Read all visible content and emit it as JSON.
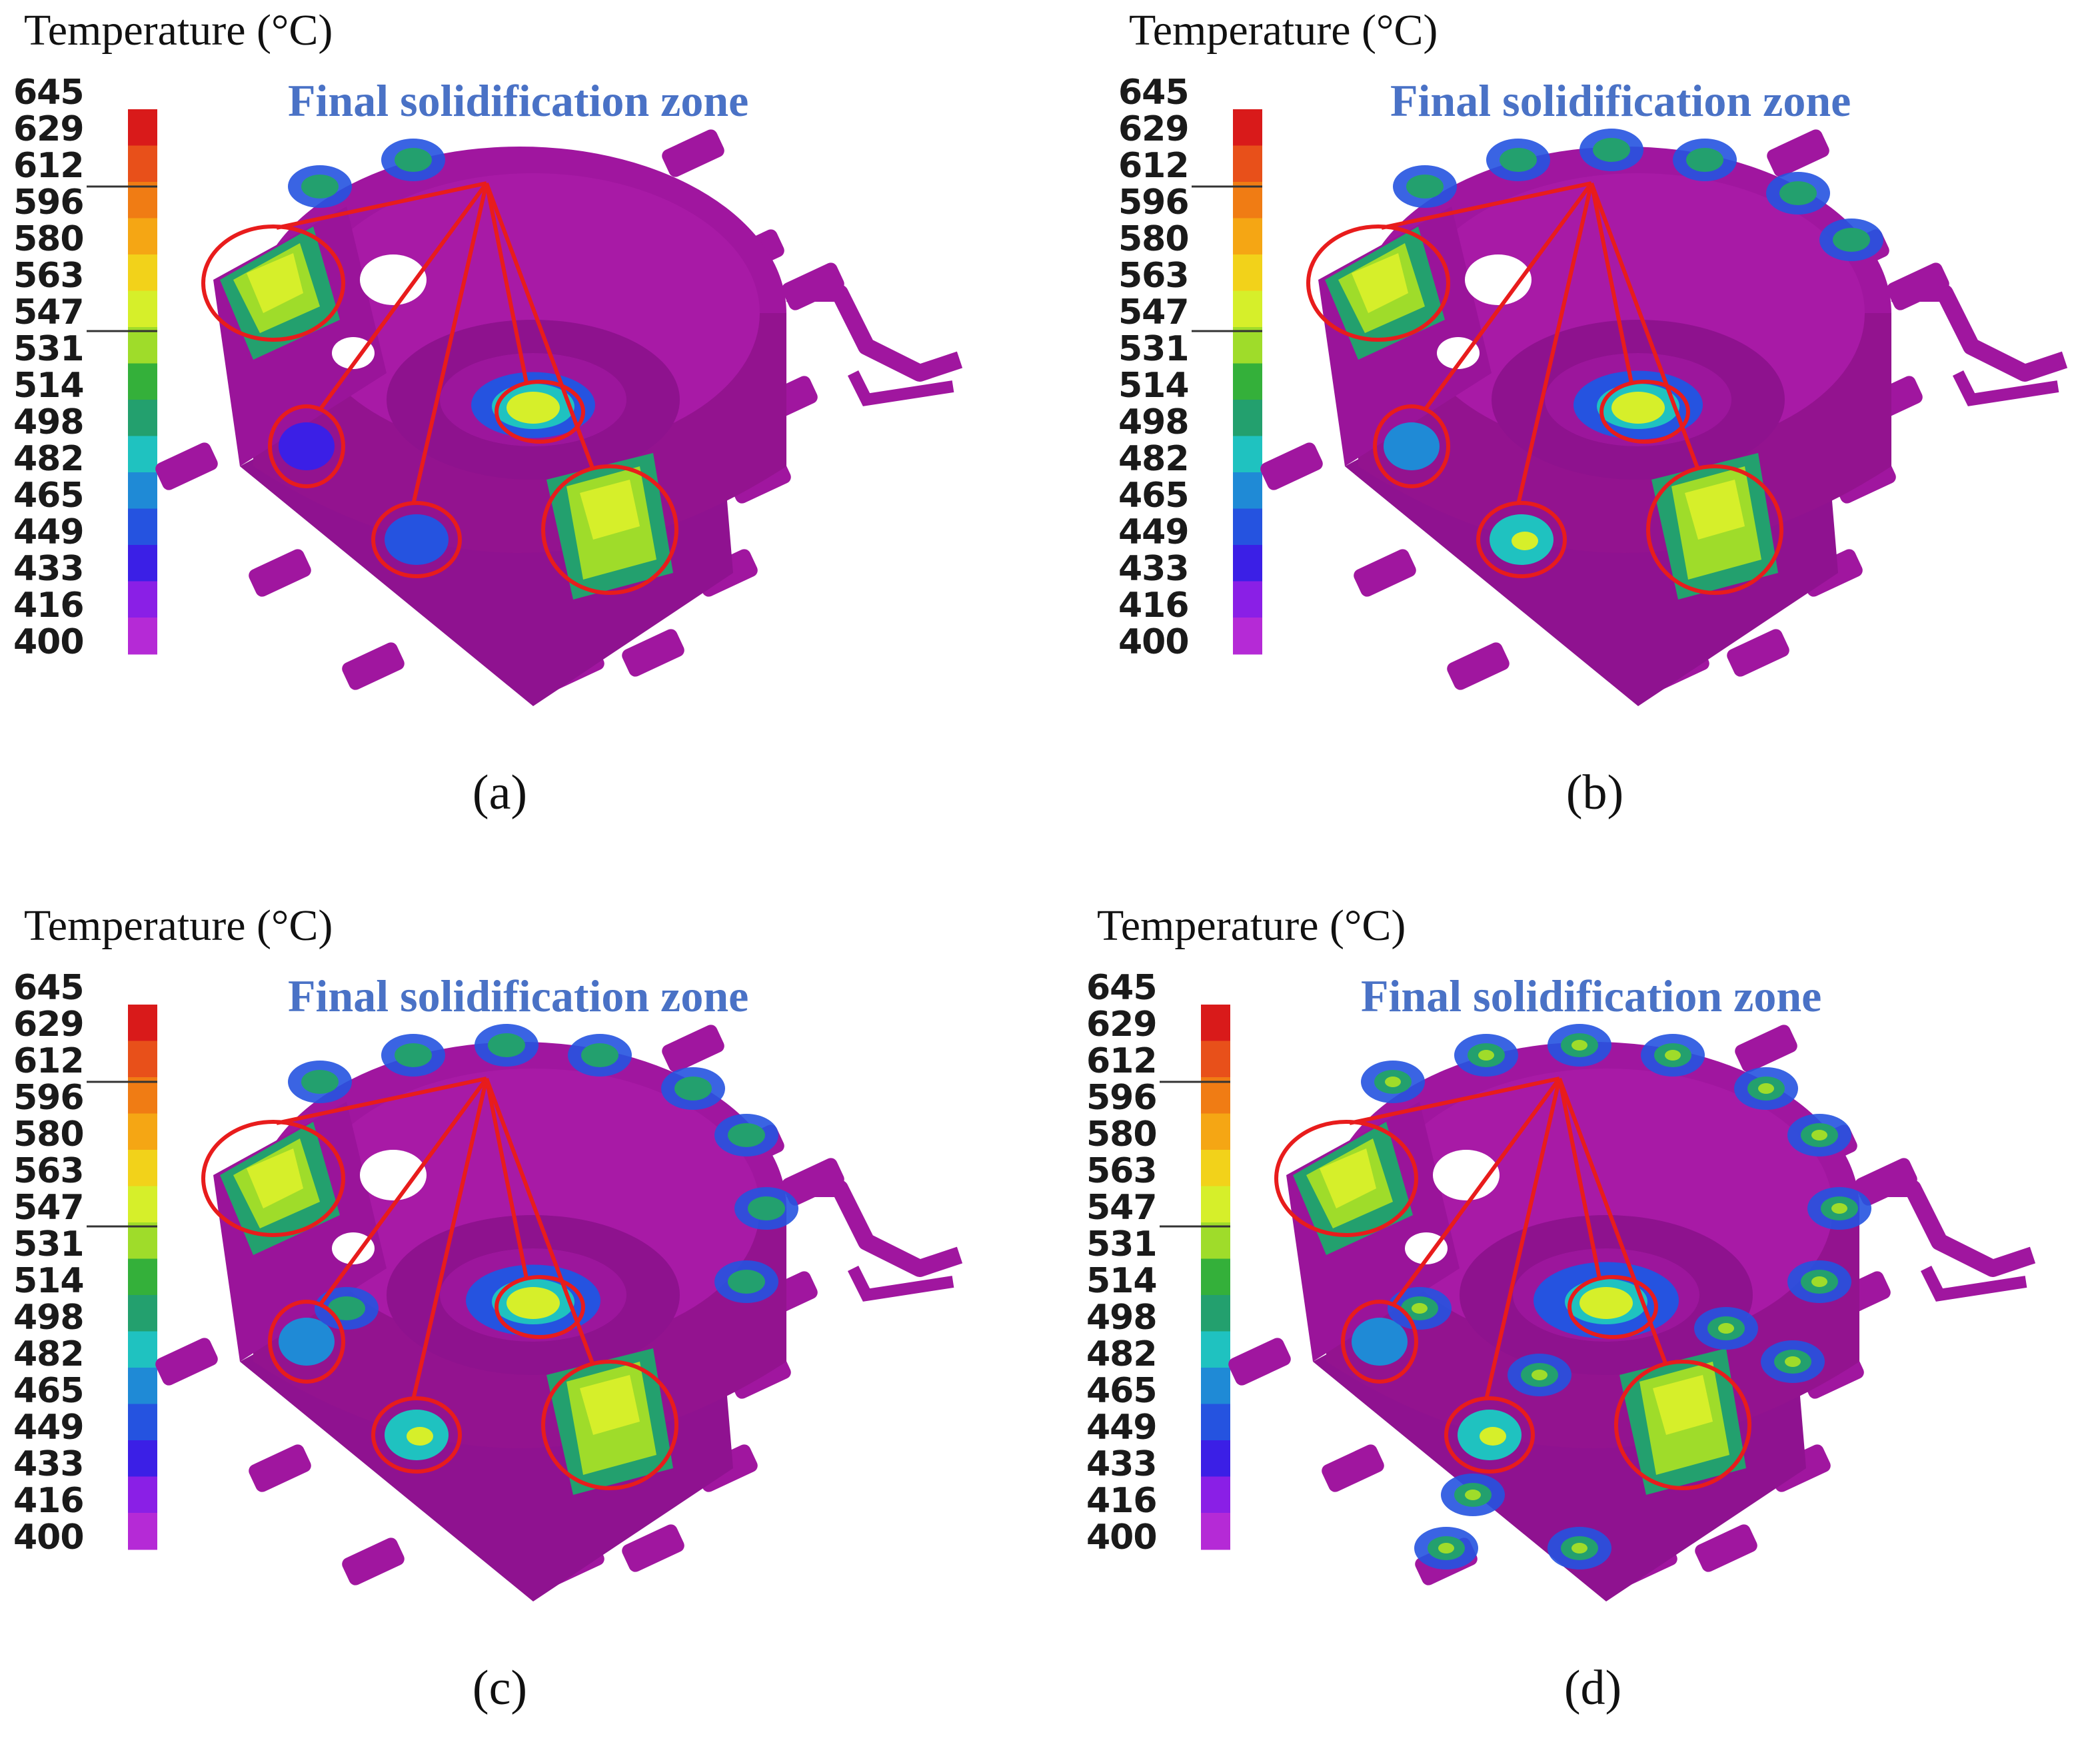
{
  "legend": {
    "title": "Temperature (°C)",
    "ticks": [
      "645",
      "629",
      "612",
      "596",
      "580",
      "563",
      "547",
      "531",
      "514",
      "498",
      "482",
      "465",
      "449",
      "433",
      "416",
      "400"
    ],
    "colors": [
      "#d91a1a",
      "#e8501a",
      "#f07c14",
      "#f5a614",
      "#f2d21a",
      "#d6ef2a",
      "#9fdc2a",
      "#34b03a",
      "#23a06e",
      "#1fc2c0",
      "#1f8ad6",
      "#2553e0",
      "#3b1fe6",
      "#8a1fe6",
      "#b52ad6",
      "#b21fb6"
    ]
  },
  "annotation": {
    "zone_label": "Final solidification zone",
    "circle_color": "#e81c1c"
  },
  "body_color": "#a0169f",
  "panels": [
    {
      "label": "(a)"
    },
    {
      "label": "(b)"
    },
    {
      "label": "(c)"
    },
    {
      "label": "(d)"
    }
  ]
}
